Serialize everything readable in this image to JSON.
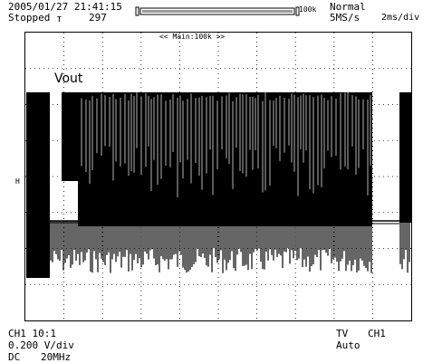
{
  "header": {
    "datetime": "2005/01/27 21:41:15",
    "status": "Stopped",
    "trigger_symbol": "т",
    "acq_count": "297",
    "record_length": "100k",
    "mode": "Normal",
    "sample_rate": "5MS/s",
    "time_div": "2ms/div"
  },
  "screen": {
    "zoom_label": "<< Main:100k >>",
    "signal_label": "Vout",
    "level_marker": "H"
  },
  "footer": {
    "ch_probe": "CH1 10:1",
    "volts_div": "0.200 V/div",
    "coupling": "DC",
    "bandwidth": "20MHz",
    "trigger_type": "TV",
    "trigger_source": "CH1",
    "trigger_mode": "Auto"
  },
  "record_bar": {
    "visible_fraction": 1.0
  }
}
